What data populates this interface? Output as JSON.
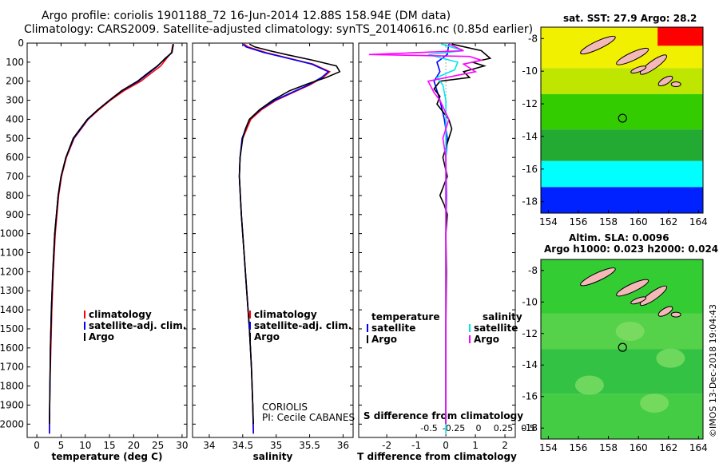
{
  "header": {
    "line1": "Argo profile: coriolis 1901188_72 16-Jun-2014 12.88S 158.94E (DM data)",
    "line2": "Climatology: CARS2009. Satellite-adjusted climatology: synTS_20140616.nc (0.85d earlier)"
  },
  "maps": {
    "sst_title": "sat. SST: 27.9 Argo: 28.2",
    "sla_title1": "Altim. SLA: 0.0096",
    "sla_title2": "Argo h1000: 0.023 h2000: 0.024",
    "lat_ticks": [
      "-8",
      "-10",
      "-12",
      "-14",
      "-16",
      "-18"
    ],
    "lon_ticks": [
      "154",
      "156",
      "158",
      "160",
      "162",
      "164"
    ]
  },
  "footer": {
    "stamp": "©IMOS 13-Dec-2018 19:04:43"
  },
  "colors": {
    "climatology": "#ff0000",
    "satellite": "#0000ff",
    "argo": "#000000",
    "sat_s": "#00e5ee",
    "argo_s": "#ff00ff"
  },
  "chart_data": [
    {
      "type": "line",
      "id": "temperature",
      "xlabel": "temperature (deg C)",
      "ylabel": "",
      "xlim": [
        -2,
        31
      ],
      "ylim": [
        2070,
        0
      ],
      "x_ticks": [
        0,
        5,
        10,
        15,
        20,
        25,
        30
      ],
      "y_ticks": [
        0,
        100,
        200,
        300,
        400,
        500,
        600,
        700,
        800,
        900,
        1000,
        1100,
        1200,
        1300,
        1400,
        1500,
        1600,
        1700,
        1800,
        1900,
        2000
      ],
      "legend": [
        "climatology",
        "satellite-adj. clim.",
        "Argo"
      ],
      "series": [
        {
          "name": "climatology",
          "color": "#ff0000",
          "depth": [
            5,
            50,
            80,
            120,
            160,
            200,
            250,
            300,
            350,
            400,
            500,
            600,
            700,
            800,
            1000,
            1200,
            1400,
            1600,
            1800,
            2000,
            2050
          ],
          "values": [
            28.1,
            27.8,
            26.8,
            25.6,
            23.5,
            21.5,
            18.0,
            15.2,
            12.8,
            10.6,
            7.7,
            6.1,
            5.1,
            4.5,
            3.8,
            3.4,
            3.1,
            2.9,
            2.7,
            2.6,
            2.6
          ]
        },
        {
          "name": "satellite-adj. clim.",
          "color": "#0000ff",
          "depth": [
            5,
            50,
            80,
            120,
            160,
            200,
            250,
            300,
            350,
            400,
            500,
            600,
            700,
            800,
            1000,
            1200,
            1400,
            1600,
            1800,
            2000,
            2050
          ],
          "values": [
            28.2,
            27.9,
            26.5,
            25.0,
            23.0,
            21.0,
            17.6,
            15.0,
            12.6,
            10.5,
            7.6,
            6.0,
            5.0,
            4.4,
            3.7,
            3.3,
            3.0,
            2.8,
            2.7,
            2.6,
            2.6
          ]
        },
        {
          "name": "Argo",
          "color": "#000000",
          "depth": [
            5,
            50,
            80,
            120,
            160,
            200,
            250,
            300,
            350,
            400,
            500,
            600,
            700,
            800,
            1000,
            1200,
            1400,
            1600,
            1800,
            2000
          ],
          "values": [
            28.2,
            27.9,
            26.6,
            24.9,
            22.8,
            20.8,
            17.5,
            15.0,
            12.6,
            10.4,
            7.5,
            6.0,
            5.0,
            4.4,
            3.7,
            3.3,
            3.0,
            2.8,
            2.7,
            2.6
          ]
        }
      ]
    },
    {
      "type": "line",
      "id": "salinity",
      "xlabel": "salinity",
      "xlim": [
        33.75,
        36.15
      ],
      "ylim": [
        2070,
        0
      ],
      "x_ticks": [
        34,
        34.5,
        35,
        35.5,
        36
      ],
      "x_tick_labels": [
        "34",
        "34.5",
        "35",
        "35.5",
        "36"
      ],
      "legend": [
        "climatology",
        "satellite-adj. clim.",
        "Argo"
      ],
      "annotation": [
        "CORIOLIS",
        "PI: Cecile CABANES"
      ],
      "series": [
        {
          "name": "climatology",
          "color": "#ff0000",
          "depth": [
            5,
            20,
            50,
            80,
            110,
            150,
            180,
            220,
            260,
            300,
            350,
            400,
            500,
            600,
            700,
            900,
            1100,
            1300,
            1500,
            1700,
            1900,
            2050
          ],
          "values": [
            34.52,
            34.58,
            34.85,
            35.2,
            35.55,
            35.8,
            35.7,
            35.5,
            35.25,
            35.0,
            34.78,
            34.62,
            34.5,
            34.46,
            34.45,
            34.48,
            34.52,
            34.56,
            34.6,
            34.63,
            34.65,
            34.66
          ]
        },
        {
          "name": "satellite-adj. clim.",
          "color": "#0000ff",
          "depth": [
            5,
            20,
            50,
            80,
            110,
            150,
            180,
            220,
            260,
            300,
            350,
            400,
            500,
            600,
            700,
            900,
            1100,
            1300,
            1500,
            1700,
            1900,
            2050
          ],
          "values": [
            34.5,
            34.55,
            34.82,
            35.18,
            35.53,
            35.78,
            35.68,
            35.48,
            35.23,
            34.98,
            34.76,
            34.6,
            34.49,
            34.46,
            34.45,
            34.48,
            34.52,
            34.56,
            34.6,
            34.63,
            34.65,
            34.66
          ]
        },
        {
          "name": "Argo",
          "color": "#000000",
          "depth": [
            5,
            20,
            40,
            60,
            90,
            120,
            150,
            180,
            210,
            250,
            300,
            350,
            400,
            450,
            500,
            600,
            700,
            900,
            1100,
            1300,
            1500,
            1700,
            1900,
            2000
          ],
          "values": [
            34.6,
            34.68,
            34.9,
            35.15,
            35.55,
            35.9,
            35.95,
            35.75,
            35.5,
            35.2,
            34.95,
            34.75,
            34.6,
            34.54,
            34.5,
            34.46,
            34.45,
            34.48,
            34.52,
            34.56,
            34.6,
            34.63,
            34.65,
            34.66
          ]
        }
      ]
    },
    {
      "type": "line",
      "id": "difference",
      "xlabel": "T difference from climatology",
      "xlabel_top": "S difference from climatology",
      "xlim": [
        -2.95,
        2.35
      ],
      "ylim": [
        2070,
        0
      ],
      "x_ticks": [
        -2,
        -1,
        0,
        1,
        2
      ],
      "s_tick_labels": [
        "-0.5",
        "-0.25",
        "0",
        "0.25",
        "0.5"
      ],
      "legend_left_title": "temperature",
      "legend_right_title": "salinity",
      "legend_left": [
        "satellite",
        "Argo"
      ],
      "legend_right": [
        "satellite",
        "Argo"
      ],
      "series": [
        {
          "name": "T satellite",
          "color": "#0000ff",
          "depth": [
            5,
            60,
            100,
            150,
            200,
            250,
            300,
            400,
            500,
            600,
            800,
            1000,
            1500,
            2000
          ],
          "values": [
            0.1,
            0.05,
            -0.3,
            -0.2,
            -0.4,
            -0.3,
            -0.2,
            -0.05,
            0.05,
            0.0,
            0.02,
            0.0,
            0.0,
            0.0
          ]
        },
        {
          "name": "T Argo",
          "color": "#000000",
          "depth": [
            5,
            40,
            80,
            100,
            120,
            150,
            180,
            200,
            240,
            280,
            320,
            400,
            450,
            500,
            600,
            700,
            800,
            850,
            900,
            1000,
            1200,
            1500,
            2000
          ],
          "values": [
            0.2,
            1.2,
            1.5,
            0.9,
            1.3,
            0.6,
            0.8,
            -0.2,
            -0.4,
            -0.2,
            -0.3,
            0.1,
            0.2,
            0.1,
            -0.1,
            0.05,
            -0.2,
            -0.05,
            0.05,
            0.0,
            0.02,
            0.0,
            0.0
          ]
        },
        {
          "name": "S satellite",
          "color": "#00e5ee",
          "depth": [
            5,
            40,
            60,
            80,
            100,
            140,
            180,
            220,
            300,
            400,
            600,
            800,
            1000,
            1500,
            2050
          ],
          "values": [
            -0.08,
            0.3,
            -0.3,
            -0.05,
            0.2,
            0.15,
            -0.15,
            -0.05,
            0.0,
            0.0,
            0.0,
            0.0,
            0.0,
            0.0,
            0.0
          ]
        },
        {
          "name": "S Argo",
          "color": "#ff00ff",
          "depth": [
            5,
            40,
            60,
            70,
            90,
            110,
            150,
            200,
            260,
            300,
            400,
            500,
            600,
            800,
            1000,
            1500,
            2000
          ],
          "values": [
            0.05,
            0.3,
            -1.3,
            0.4,
            0.6,
            0.3,
            0.5,
            -0.3,
            -0.2,
            -0.1,
            0.05,
            -0.05,
            0.0,
            0.0,
            0.0,
            0.0,
            0.0
          ]
        }
      ]
    }
  ]
}
